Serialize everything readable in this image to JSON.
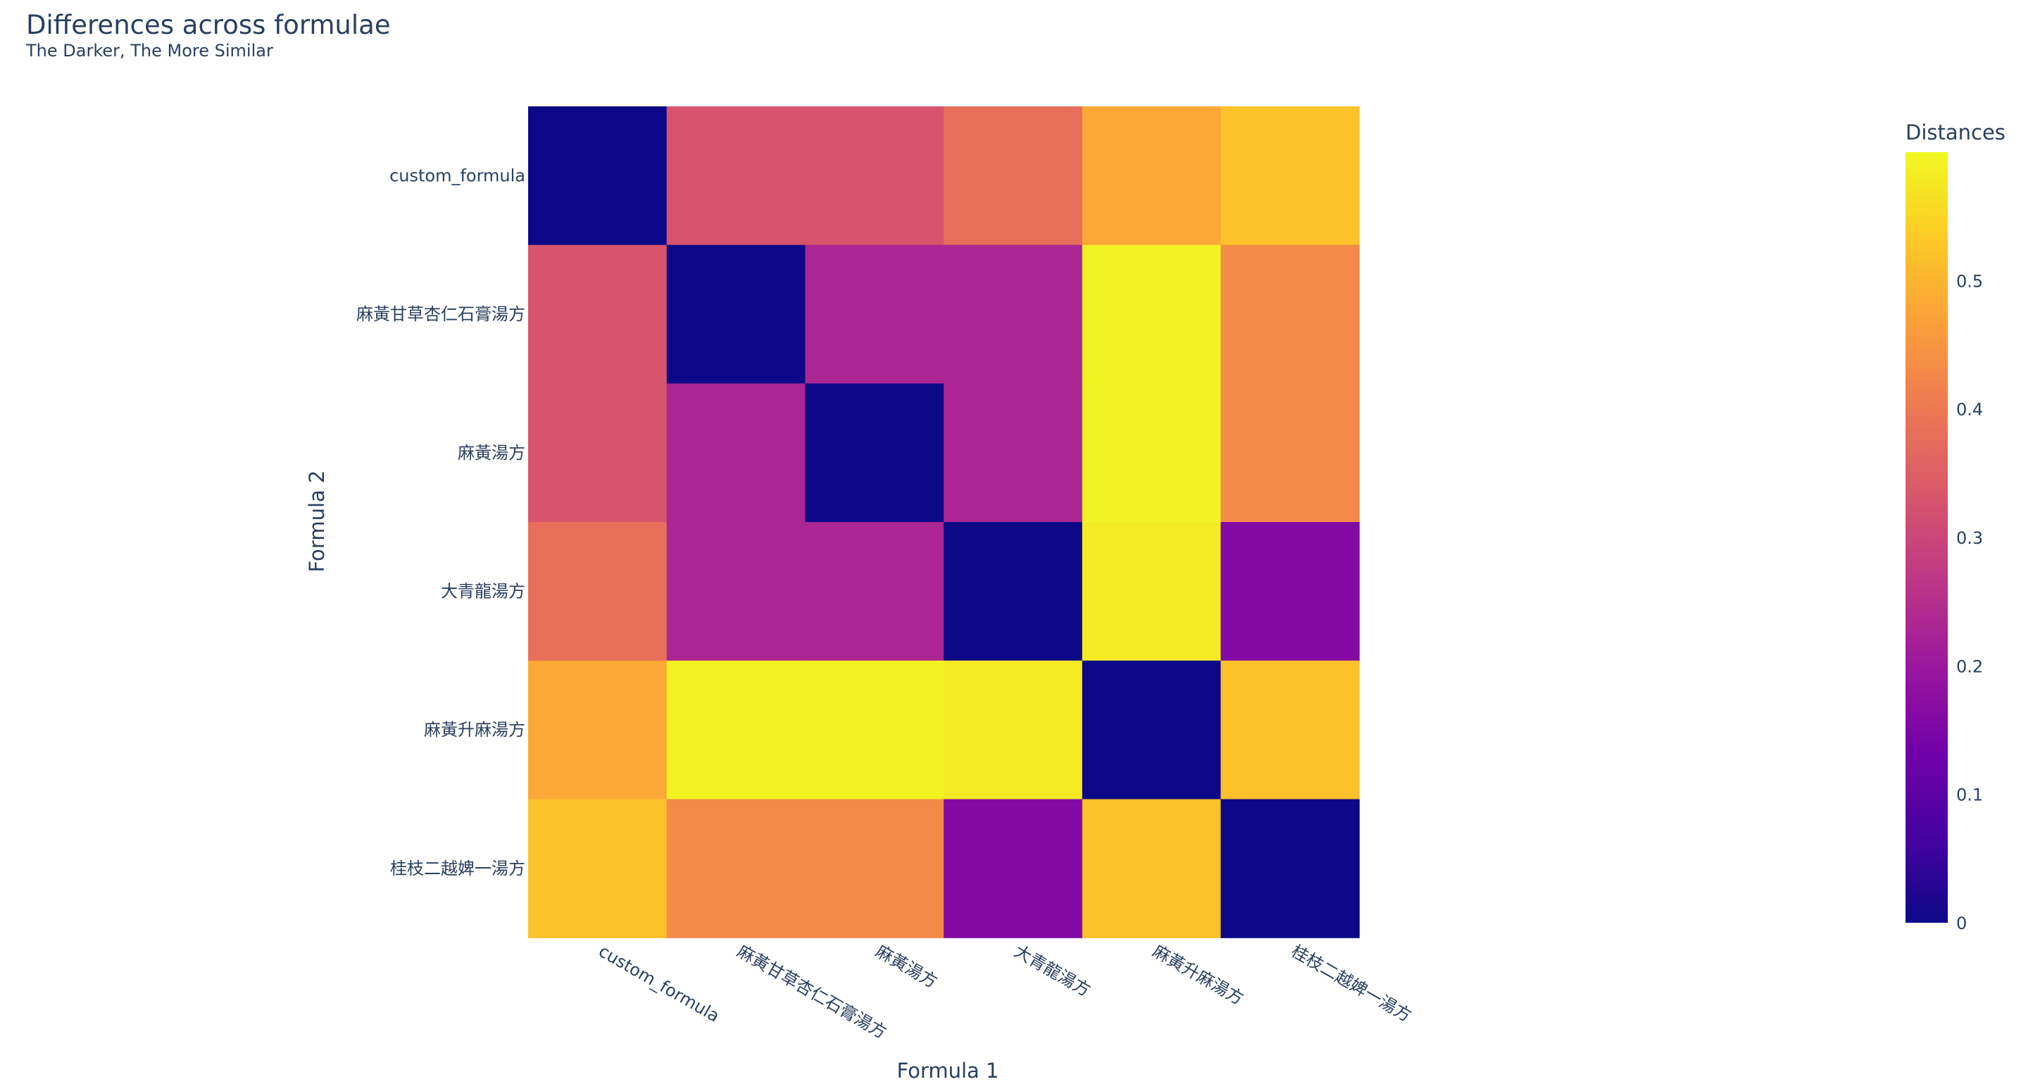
{
  "chart_data": {
    "type": "heatmap",
    "title": "Differences across formulae",
    "subtitle": "The Darker, The More Similar",
    "xlabel": "Formula 1",
    "ylabel": "Formula 2",
    "x_categories": [
      "custom_formula",
      "麻黃甘草杏仁石膏湯方",
      "麻黃湯方",
      "大青龍湯方",
      "麻黃升麻湯方",
      "桂枝二越婢一湯方"
    ],
    "y_categories": [
      "custom_formula",
      "麻黃甘草杏仁石膏湯方",
      "麻黃湯方",
      "大青龍湯方",
      "麻黃升麻湯方",
      "桂枝二越婢一湯方"
    ],
    "z": [
      [
        0.0,
        0.33,
        0.33,
        0.38,
        0.48,
        0.52
      ],
      [
        0.33,
        0.0,
        0.23,
        0.23,
        0.59,
        0.43
      ],
      [
        0.33,
        0.23,
        0.0,
        0.23,
        0.59,
        0.43
      ],
      [
        0.38,
        0.23,
        0.23,
        0.0,
        0.58,
        0.16
      ],
      [
        0.48,
        0.59,
        0.59,
        0.58,
        0.0,
        0.52
      ],
      [
        0.52,
        0.43,
        0.43,
        0.16,
        0.52,
        0.0
      ]
    ],
    "colorbar": {
      "title": "Distances",
      "min": 0,
      "max": 0.6,
      "ticks": [
        0,
        0.1,
        0.2,
        0.3,
        0.4,
        0.5
      ],
      "tick_labels": [
        "0",
        "0.1",
        "0.2",
        "0.3",
        "0.4",
        "0.5"
      ]
    },
    "colorscale": [
      "#0d0887",
      "#46039f",
      "#7201a8",
      "#9c179e",
      "#bd3786",
      "#d8576b",
      "#ed7953",
      "#fb9f3a",
      "#fdca26",
      "#f0f921"
    ]
  }
}
